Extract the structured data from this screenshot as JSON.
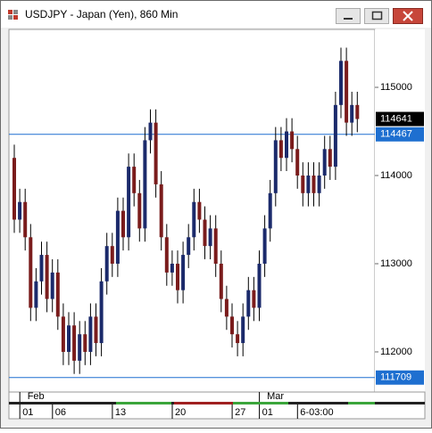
{
  "chart_data": {
    "type": "candlestick",
    "title": "USDJPY - Japan (Yen), 860 Min",
    "up_color": "#1b2a6b",
    "down_color": "#7a1c1c",
    "hline_color": "#1e6fd0",
    "ylim": [
      111545,
      115657
    ],
    "yticks": [
      112000,
      113000,
      114000,
      115000
    ],
    "hlines": [
      114467,
      111709
    ],
    "categories": [
      null,
      null,
      "01",
      null,
      null,
      null,
      null,
      null,
      "06",
      null,
      null,
      null,
      null,
      null,
      null,
      null,
      null,
      null,
      null,
      "13",
      null,
      null,
      null,
      null,
      null,
      null,
      null,
      null,
      null,
      null,
      "20",
      null,
      null,
      null,
      null,
      null,
      null,
      null,
      null,
      null,
      null,
      "27",
      null,
      null,
      null,
      null,
      "01",
      null,
      null,
      null,
      null,
      null,
      null,
      "6-03:00",
      null,
      null,
      null,
      null,
      null,
      null,
      null,
      null,
      null,
      null
    ],
    "x_major": [
      {
        "value": 2,
        "label": "Feb"
      },
      {
        "value": 46,
        "label": "Mar"
      }
    ],
    "open": [
      114200,
      113500,
      113700,
      113300,
      112500,
      112800,
      113100,
      112600,
      112900,
      112400,
      112000,
      112300,
      111900,
      112200,
      112000,
      112400,
      112100,
      112800,
      113200,
      113000,
      113600,
      113300,
      114100,
      113800,
      113400,
      114400,
      114600,
      113900,
      113300,
      112900,
      113000,
      112700,
      113100,
      113300,
      113700,
      113500,
      113200,
      113400,
      113000,
      112600,
      112400,
      112200,
      112100,
      112400,
      112700,
      112500,
      113000,
      113400,
      113800,
      114400,
      114200,
      114500,
      114300,
      114000,
      113800,
      114000,
      113800,
      114000,
      114300,
      114100,
      114800,
      115300,
      114600,
      114800
    ],
    "high": [
      114350,
      113850,
      113850,
      113450,
      112950,
      113250,
      113250,
      113050,
      113050,
      112550,
      112450,
      112450,
      112350,
      112350,
      112550,
      112550,
      112950,
      113350,
      113350,
      113750,
      113750,
      114250,
      114250,
      113950,
      114550,
      114750,
      114750,
      114050,
      113450,
      113150,
      113150,
      113250,
      113450,
      113850,
      113850,
      113650,
      113550,
      113550,
      113150,
      112750,
      112550,
      112350,
      112550,
      112850,
      112850,
      113150,
      113550,
      113950,
      114550,
      114550,
      114650,
      114650,
      114450,
      114150,
      114150,
      114150,
      114150,
      114450,
      114450,
      114950,
      115450,
      115450,
      114950,
      114950
    ],
    "low": [
      113350,
      113350,
      113150,
      112350,
      112350,
      112650,
      112450,
      112450,
      112250,
      111850,
      111850,
      111750,
      111750,
      111850,
      111850,
      111950,
      111950,
      112650,
      112850,
      112850,
      113150,
      113150,
      113650,
      113250,
      113250,
      114250,
      113750,
      113150,
      112750,
      112750,
      112550,
      112550,
      112950,
      113150,
      113350,
      113050,
      113050,
      112850,
      112450,
      112250,
      112050,
      111950,
      111950,
      112250,
      112350,
      112350,
      112850,
      113250,
      113650,
      114050,
      114050,
      114150,
      113850,
      113650,
      113650,
      113650,
      113650,
      113850,
      113950,
      113950,
      114650,
      114450,
      114450,
      114491
    ],
    "close": [
      113500,
      113700,
      113300,
      112500,
      112800,
      113100,
      112600,
      112900,
      112400,
      112000,
      112300,
      111900,
      112200,
      112000,
      112400,
      112100,
      112800,
      113200,
      113000,
      113600,
      113300,
      114100,
      113800,
      113400,
      114400,
      114600,
      113900,
      113300,
      112900,
      113000,
      112700,
      113100,
      113300,
      113700,
      113500,
      113200,
      113400,
      113000,
      112600,
      112400,
      112200,
      112100,
      112400,
      112700,
      112500,
      113000,
      113400,
      113800,
      114400,
      114200,
      114500,
      114300,
      114000,
      113800,
      114000,
      113800,
      114000,
      114300,
      114100,
      114800,
      115300,
      114600,
      114800,
      114641
    ]
  }
}
